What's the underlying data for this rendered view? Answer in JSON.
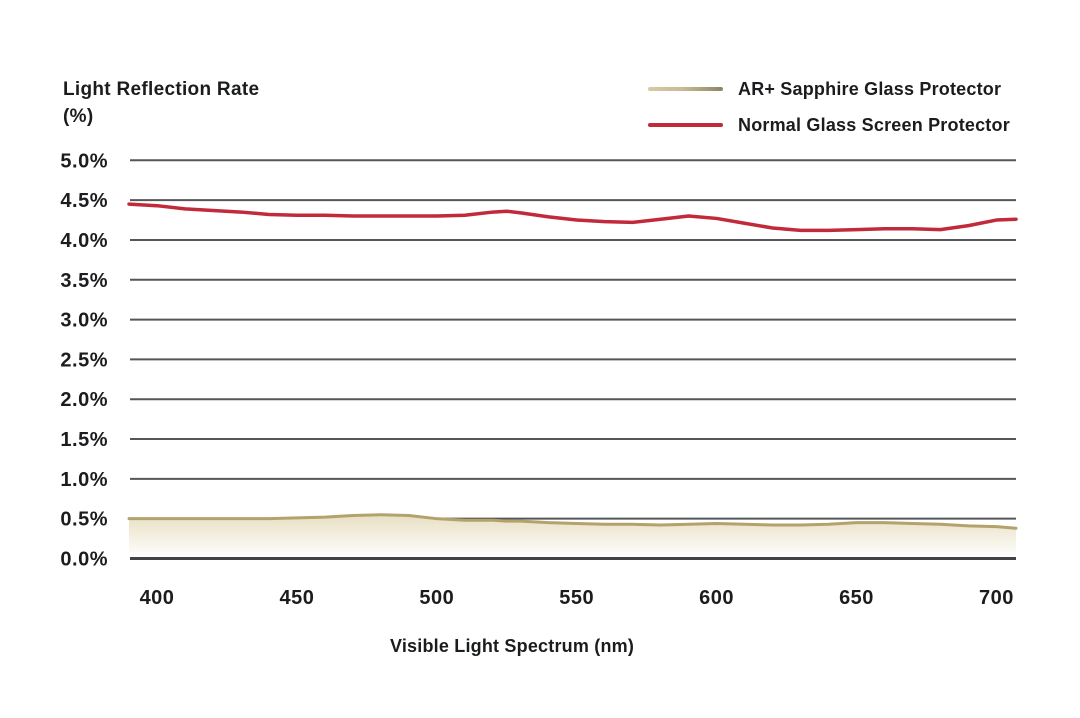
{
  "title": {
    "line1": "Light Reflection Rate",
    "line2": "(%)"
  },
  "legend": {
    "items": [
      {
        "label": "AR+ Sapphire Glass Protector",
        "swatch": "tan-gradient",
        "color_start": "#d6caa4",
        "color_end": "#8c8466"
      },
      {
        "label": "Normal Glass Screen Protector",
        "swatch": "solid",
        "color": "#c12a3a"
      }
    ]
  },
  "chart_data": {
    "type": "line",
    "title": "Light Reflection Rate (%)",
    "xlabel": "Visible Light Spectrum (nm)",
    "ylabel": "Light Reflection Rate (%)",
    "xlim": [
      390,
      707
    ],
    "ylim": [
      0,
      5
    ],
    "grid": true,
    "legend_position": "top-right",
    "grid_color": "#55565a",
    "baseline_color": "#414246",
    "x_ticks": [
      400,
      450,
      500,
      550,
      600,
      650,
      700
    ],
    "y_ticks": [
      "0.0%",
      "0.5%",
      "1.0%",
      "1.5%",
      "2.0%",
      "2.5%",
      "3.0%",
      "3.5%",
      "4.0%",
      "4.5%",
      "5.0%"
    ],
    "x": [
      390,
      400,
      410,
      420,
      430,
      440,
      450,
      460,
      470,
      480,
      490,
      500,
      510,
      520,
      525,
      530,
      540,
      550,
      560,
      570,
      580,
      590,
      600,
      610,
      620,
      630,
      640,
      650,
      660,
      670,
      680,
      690,
      700,
      707
    ],
    "series": [
      {
        "name": "AR+ Sapphire Glass Protector",
        "style": "area",
        "line_color": "#b3a26c",
        "fill_top": "#e8dfc3",
        "fill_bottom": "#ffffff",
        "values": [
          0.5,
          0.5,
          0.5,
          0.5,
          0.5,
          0.5,
          0.51,
          0.52,
          0.54,
          0.55,
          0.54,
          0.5,
          0.48,
          0.48,
          0.47,
          0.47,
          0.45,
          0.44,
          0.43,
          0.43,
          0.42,
          0.43,
          0.44,
          0.43,
          0.42,
          0.42,
          0.43,
          0.45,
          0.45,
          0.44,
          0.43,
          0.41,
          0.4,
          0.38
        ]
      },
      {
        "name": "Normal Glass Screen Protector",
        "style": "line",
        "line_color": "#c12a3a",
        "values": [
          4.45,
          4.43,
          4.39,
          4.37,
          4.35,
          4.32,
          4.31,
          4.31,
          4.3,
          4.3,
          4.3,
          4.3,
          4.31,
          4.35,
          4.36,
          4.34,
          4.29,
          4.25,
          4.23,
          4.22,
          4.26,
          4.3,
          4.27,
          4.21,
          4.15,
          4.12,
          4.12,
          4.13,
          4.14,
          4.14,
          4.13,
          4.18,
          4.25,
          4.26
        ]
      }
    ]
  }
}
